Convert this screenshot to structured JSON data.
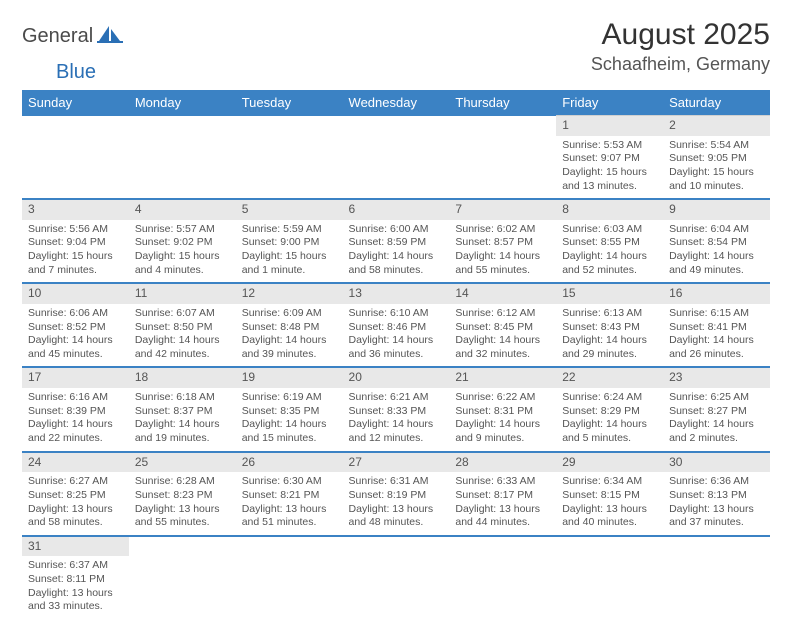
{
  "logo": {
    "general": "General",
    "blue": "Blue"
  },
  "title": "August 2025",
  "location": "Schaafheim, Germany",
  "colors": {
    "header_bg": "#3b82c4",
    "header_text": "#ffffff",
    "daynum_bg": "#e8e8e8",
    "divider": "#3b82c4",
    "text": "#555555",
    "background": "#ffffff"
  },
  "typography": {
    "title_fontsize": 30,
    "location_fontsize": 18,
    "weekday_fontsize": 13,
    "daynum_fontsize": 12,
    "cell_fontsize": 10.5
  },
  "weekdays": [
    "Sunday",
    "Monday",
    "Tuesday",
    "Wednesday",
    "Thursday",
    "Friday",
    "Saturday"
  ],
  "weeks": [
    [
      null,
      null,
      null,
      null,
      null,
      {
        "n": "1",
        "sr": "Sunrise: 5:53 AM",
        "ss": "Sunset: 9:07 PM",
        "dl": "Daylight: 15 hours and 13 minutes."
      },
      {
        "n": "2",
        "sr": "Sunrise: 5:54 AM",
        "ss": "Sunset: 9:05 PM",
        "dl": "Daylight: 15 hours and 10 minutes."
      }
    ],
    [
      {
        "n": "3",
        "sr": "Sunrise: 5:56 AM",
        "ss": "Sunset: 9:04 PM",
        "dl": "Daylight: 15 hours and 7 minutes."
      },
      {
        "n": "4",
        "sr": "Sunrise: 5:57 AM",
        "ss": "Sunset: 9:02 PM",
        "dl": "Daylight: 15 hours and 4 minutes."
      },
      {
        "n": "5",
        "sr": "Sunrise: 5:59 AM",
        "ss": "Sunset: 9:00 PM",
        "dl": "Daylight: 15 hours and 1 minute."
      },
      {
        "n": "6",
        "sr": "Sunrise: 6:00 AM",
        "ss": "Sunset: 8:59 PM",
        "dl": "Daylight: 14 hours and 58 minutes."
      },
      {
        "n": "7",
        "sr": "Sunrise: 6:02 AM",
        "ss": "Sunset: 8:57 PM",
        "dl": "Daylight: 14 hours and 55 minutes."
      },
      {
        "n": "8",
        "sr": "Sunrise: 6:03 AM",
        "ss": "Sunset: 8:55 PM",
        "dl": "Daylight: 14 hours and 52 minutes."
      },
      {
        "n": "9",
        "sr": "Sunrise: 6:04 AM",
        "ss": "Sunset: 8:54 PM",
        "dl": "Daylight: 14 hours and 49 minutes."
      }
    ],
    [
      {
        "n": "10",
        "sr": "Sunrise: 6:06 AM",
        "ss": "Sunset: 8:52 PM",
        "dl": "Daylight: 14 hours and 45 minutes."
      },
      {
        "n": "11",
        "sr": "Sunrise: 6:07 AM",
        "ss": "Sunset: 8:50 PM",
        "dl": "Daylight: 14 hours and 42 minutes."
      },
      {
        "n": "12",
        "sr": "Sunrise: 6:09 AM",
        "ss": "Sunset: 8:48 PM",
        "dl": "Daylight: 14 hours and 39 minutes."
      },
      {
        "n": "13",
        "sr": "Sunrise: 6:10 AM",
        "ss": "Sunset: 8:46 PM",
        "dl": "Daylight: 14 hours and 36 minutes."
      },
      {
        "n": "14",
        "sr": "Sunrise: 6:12 AM",
        "ss": "Sunset: 8:45 PM",
        "dl": "Daylight: 14 hours and 32 minutes."
      },
      {
        "n": "15",
        "sr": "Sunrise: 6:13 AM",
        "ss": "Sunset: 8:43 PM",
        "dl": "Daylight: 14 hours and 29 minutes."
      },
      {
        "n": "16",
        "sr": "Sunrise: 6:15 AM",
        "ss": "Sunset: 8:41 PM",
        "dl": "Daylight: 14 hours and 26 minutes."
      }
    ],
    [
      {
        "n": "17",
        "sr": "Sunrise: 6:16 AM",
        "ss": "Sunset: 8:39 PM",
        "dl": "Daylight: 14 hours and 22 minutes."
      },
      {
        "n": "18",
        "sr": "Sunrise: 6:18 AM",
        "ss": "Sunset: 8:37 PM",
        "dl": "Daylight: 14 hours and 19 minutes."
      },
      {
        "n": "19",
        "sr": "Sunrise: 6:19 AM",
        "ss": "Sunset: 8:35 PM",
        "dl": "Daylight: 14 hours and 15 minutes."
      },
      {
        "n": "20",
        "sr": "Sunrise: 6:21 AM",
        "ss": "Sunset: 8:33 PM",
        "dl": "Daylight: 14 hours and 12 minutes."
      },
      {
        "n": "21",
        "sr": "Sunrise: 6:22 AM",
        "ss": "Sunset: 8:31 PM",
        "dl": "Daylight: 14 hours and 9 minutes."
      },
      {
        "n": "22",
        "sr": "Sunrise: 6:24 AM",
        "ss": "Sunset: 8:29 PM",
        "dl": "Daylight: 14 hours and 5 minutes."
      },
      {
        "n": "23",
        "sr": "Sunrise: 6:25 AM",
        "ss": "Sunset: 8:27 PM",
        "dl": "Daylight: 14 hours and 2 minutes."
      }
    ],
    [
      {
        "n": "24",
        "sr": "Sunrise: 6:27 AM",
        "ss": "Sunset: 8:25 PM",
        "dl": "Daylight: 13 hours and 58 minutes."
      },
      {
        "n": "25",
        "sr": "Sunrise: 6:28 AM",
        "ss": "Sunset: 8:23 PM",
        "dl": "Daylight: 13 hours and 55 minutes."
      },
      {
        "n": "26",
        "sr": "Sunrise: 6:30 AM",
        "ss": "Sunset: 8:21 PM",
        "dl": "Daylight: 13 hours and 51 minutes."
      },
      {
        "n": "27",
        "sr": "Sunrise: 6:31 AM",
        "ss": "Sunset: 8:19 PM",
        "dl": "Daylight: 13 hours and 48 minutes."
      },
      {
        "n": "28",
        "sr": "Sunrise: 6:33 AM",
        "ss": "Sunset: 8:17 PM",
        "dl": "Daylight: 13 hours and 44 minutes."
      },
      {
        "n": "29",
        "sr": "Sunrise: 6:34 AM",
        "ss": "Sunset: 8:15 PM",
        "dl": "Daylight: 13 hours and 40 minutes."
      },
      {
        "n": "30",
        "sr": "Sunrise: 6:36 AM",
        "ss": "Sunset: 8:13 PM",
        "dl": "Daylight: 13 hours and 37 minutes."
      }
    ],
    [
      {
        "n": "31",
        "sr": "Sunrise: 6:37 AM",
        "ss": "Sunset: 8:11 PM",
        "dl": "Daylight: 13 hours and 33 minutes."
      },
      null,
      null,
      null,
      null,
      null,
      null
    ]
  ]
}
